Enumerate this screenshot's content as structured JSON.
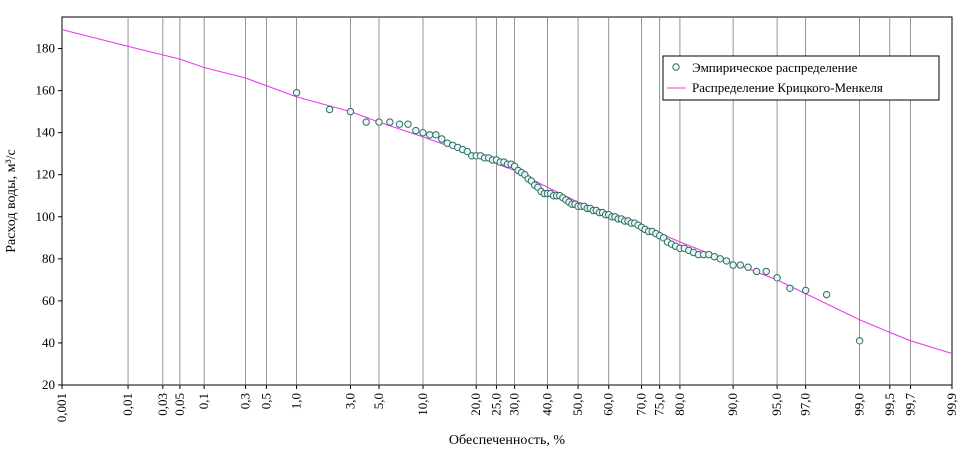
{
  "chart_data": {
    "type": "scatter",
    "xlabel": "Обеспеченность, %",
    "ylabel": "Расход воды, м³/с",
    "ylim": [
      20,
      195
    ],
    "x_scale": "probability",
    "x_ticks": [
      {
        "p": 0.001,
        "label": "0,001"
      },
      {
        "p": 0.01,
        "label": "0,01"
      },
      {
        "p": 0.03,
        "label": "0,03"
      },
      {
        "p": 0.05,
        "label": "0,05"
      },
      {
        "p": 0.1,
        "label": "0,1"
      },
      {
        "p": 0.3,
        "label": "0,3"
      },
      {
        "p": 0.5,
        "label": "0,5"
      },
      {
        "p": 1.0,
        "label": "1,0"
      },
      {
        "p": 3.0,
        "label": "3,0"
      },
      {
        "p": 5.0,
        "label": "5,0"
      },
      {
        "p": 10.0,
        "label": "10,0"
      },
      {
        "p": 20.0,
        "label": "20,0"
      },
      {
        "p": 25.0,
        "label": "25,0"
      },
      {
        "p": 30.0,
        "label": "30,0"
      },
      {
        "p": 40.0,
        "label": "40,0"
      },
      {
        "p": 50.0,
        "label": "50,0"
      },
      {
        "p": 60.0,
        "label": "60,0"
      },
      {
        "p": 70.0,
        "label": "70,0"
      },
      {
        "p": 75.0,
        "label": "75,0"
      },
      {
        "p": 80.0,
        "label": "80,0"
      },
      {
        "p": 90.0,
        "label": "90,0"
      },
      {
        "p": 95.0,
        "label": "95,0"
      },
      {
        "p": 97.0,
        "label": "97,0"
      },
      {
        "p": 99.0,
        "label": "99,0"
      },
      {
        "p": 99.5,
        "label": "99,5"
      },
      {
        "p": 99.7,
        "label": "99,7"
      },
      {
        "p": 99.9,
        "label": "99,9"
      }
    ],
    "y_ticks": [
      20,
      40,
      60,
      80,
      100,
      120,
      140,
      160,
      180
    ],
    "grid": "vertical",
    "legend_position": "top-right",
    "series": [
      {
        "name": "Эмпирическое распределение",
        "kind": "scatter",
        "color": "#2f6f5f",
        "fill": "#e8f6fa",
        "x": [
          1.0,
          2.0,
          3.0,
          4.0,
          5.0,
          6.0,
          7.0,
          8.0,
          9.0,
          10.0,
          11.0,
          12.0,
          13.0,
          14.0,
          15.0,
          16.0,
          17.0,
          18.0,
          19.0,
          20.0,
          21.0,
          22.0,
          23.0,
          24.0,
          25.0,
          26.0,
          27.0,
          28.0,
          29.0,
          30.0,
          31.0,
          32.0,
          33.0,
          34.0,
          35.0,
          36.0,
          37.0,
          38.0,
          39.0,
          40.0,
          41.0,
          42.0,
          43.0,
          44.0,
          45.0,
          46.0,
          47.0,
          48.0,
          49.0,
          50.0,
          51.0,
          52.0,
          53.0,
          54.0,
          55.0,
          56.0,
          57.0,
          58.0,
          59.0,
          60.0,
          61.0,
          62.0,
          63.0,
          64.0,
          65.0,
          66.0,
          67.0,
          68.0,
          69.0,
          70.0,
          71.0,
          72.0,
          73.0,
          74.0,
          75.0,
          76.0,
          77.0,
          78.0,
          79.0,
          80.0,
          81.0,
          82.0,
          83.0,
          84.0,
          85.0,
          86.0,
          87.0,
          88.0,
          89.0,
          90.0,
          91.0,
          92.0,
          93.0,
          94.0,
          95.0,
          96.0,
          97.0,
          98.0,
          99.0
        ],
        "y": [
          159,
          151,
          150,
          145,
          145,
          145,
          144,
          144,
          141,
          140,
          139,
          139,
          137,
          135,
          134,
          133,
          132,
          131,
          129,
          129,
          129,
          128,
          128,
          127,
          127,
          126,
          126,
          125,
          125,
          124,
          122,
          121,
          120,
          118,
          117,
          115,
          114,
          112,
          111,
          111,
          111,
          110,
          110,
          110,
          109,
          108,
          107,
          106,
          106,
          105,
          105,
          105,
          104,
          104,
          103,
          103,
          102,
          102,
          101,
          101,
          100,
          100,
          99,
          99,
          98,
          98,
          97,
          97,
          96,
          95,
          94,
          93,
          93,
          92,
          91,
          90,
          88,
          87,
          86,
          85,
          85,
          84,
          83,
          82,
          82,
          82,
          81,
          80,
          79,
          77,
          77,
          76,
          74,
          74,
          71,
          66,
          65,
          63,
          41
        ]
      },
      {
        "name": "Распределение Крицкого-Менкеля",
        "kind": "line",
        "color": "#e83ee8",
        "x": [
          0.001,
          0.01,
          0.05,
          0.1,
          0.3,
          1.0,
          3.0,
          5.0,
          10.0,
          20.0,
          30.0,
          40.0,
          50.0,
          60.0,
          70.0,
          80.0,
          90.0,
          95.0,
          99.0,
          99.5,
          99.7,
          99.9
        ],
        "y": [
          189,
          181,
          175,
          171,
          166,
          157,
          150,
          145,
          138,
          129,
          122,
          114,
          107,
          101,
          96,
          88,
          78,
          70,
          51,
          45,
          41,
          35
        ]
      }
    ]
  }
}
